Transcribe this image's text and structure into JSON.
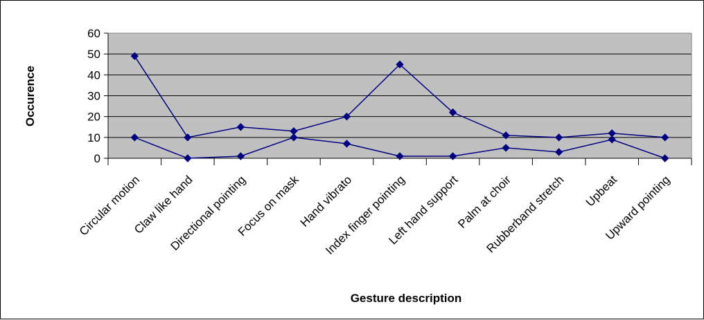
{
  "chart_data": {
    "type": "line",
    "title": "",
    "xlabel": "Gesture description",
    "ylabel": "Occurence",
    "ylim": [
      0,
      60
    ],
    "yticks": [
      0,
      10,
      20,
      30,
      40,
      50,
      60
    ],
    "grid": true,
    "legend": "none",
    "categories": [
      "Circular motion",
      "Claw like hand",
      "Directional pointing",
      "Focus on mask",
      "Hand vibrato",
      "Index finger pointing",
      "Left hand support",
      "Palm at choir",
      "Rubberband stretch",
      "Upbeat",
      "Upward pointing"
    ],
    "series": [
      {
        "values": [
          49,
          10,
          15,
          13,
          20,
          45,
          22,
          11,
          10,
          12,
          10
        ],
        "color": "#000080"
      },
      {
        "values": [
          10,
          0,
          1,
          10,
          7,
          1,
          1,
          5,
          3,
          9,
          0
        ],
        "color": "#000080"
      }
    ],
    "colors": {
      "plot_background": "#c0c0c0",
      "grid": "#000000",
      "line": "#000080"
    }
  }
}
